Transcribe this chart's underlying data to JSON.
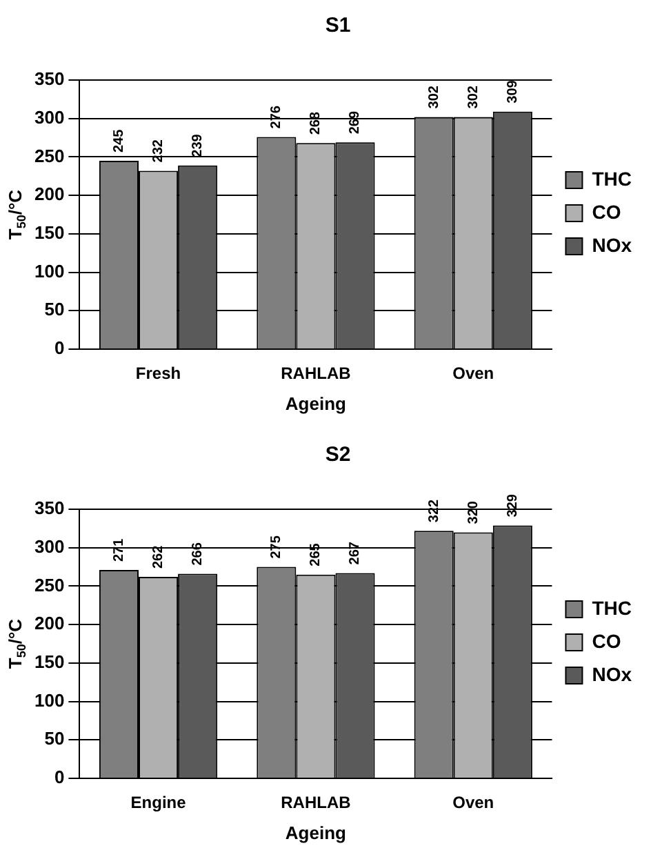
{
  "chart_data": [
    {
      "type": "bar",
      "title": "S1",
      "xlabel": "Ageing",
      "ylabel": "T$_{50}$/°C",
      "categories": [
        "Fresh",
        "RAHLAB",
        "Oven"
      ],
      "series": [
        {
          "name": "THC",
          "color": "#7f7f7f",
          "values": [
            245,
            276,
            302
          ]
        },
        {
          "name": "CO",
          "color": "#b0b0b0",
          "values": [
            232,
            268,
            302
          ]
        },
        {
          "name": "NOx",
          "color": "#5a5a5a",
          "values": [
            239,
            269,
            309
          ]
        }
      ],
      "ylim": [
        0,
        350
      ],
      "yticks": [
        0,
        50,
        100,
        150,
        200,
        250,
        300,
        350
      ],
      "grid": "y",
      "legend": "right",
      "data_labels": true
    },
    {
      "type": "bar",
      "title": "S2",
      "xlabel": "Ageing",
      "ylabel": "T$_{50}$/°C",
      "categories": [
        "Engine",
        "RAHLAB",
        "Oven"
      ],
      "series": [
        {
          "name": "THC",
          "color": "#7f7f7f",
          "values": [
            271,
            275,
            322
          ]
        },
        {
          "name": "CO",
          "color": "#b0b0b0",
          "values": [
            262,
            265,
            320
          ]
        },
        {
          "name": "NOx",
          "color": "#5a5a5a",
          "values": [
            266,
            267,
            329
          ]
        }
      ],
      "ylim": [
        0,
        350
      ],
      "yticks": [
        0,
        50,
        100,
        150,
        200,
        250,
        300,
        350
      ],
      "grid": "y",
      "legend": "right",
      "data_labels": true
    }
  ]
}
